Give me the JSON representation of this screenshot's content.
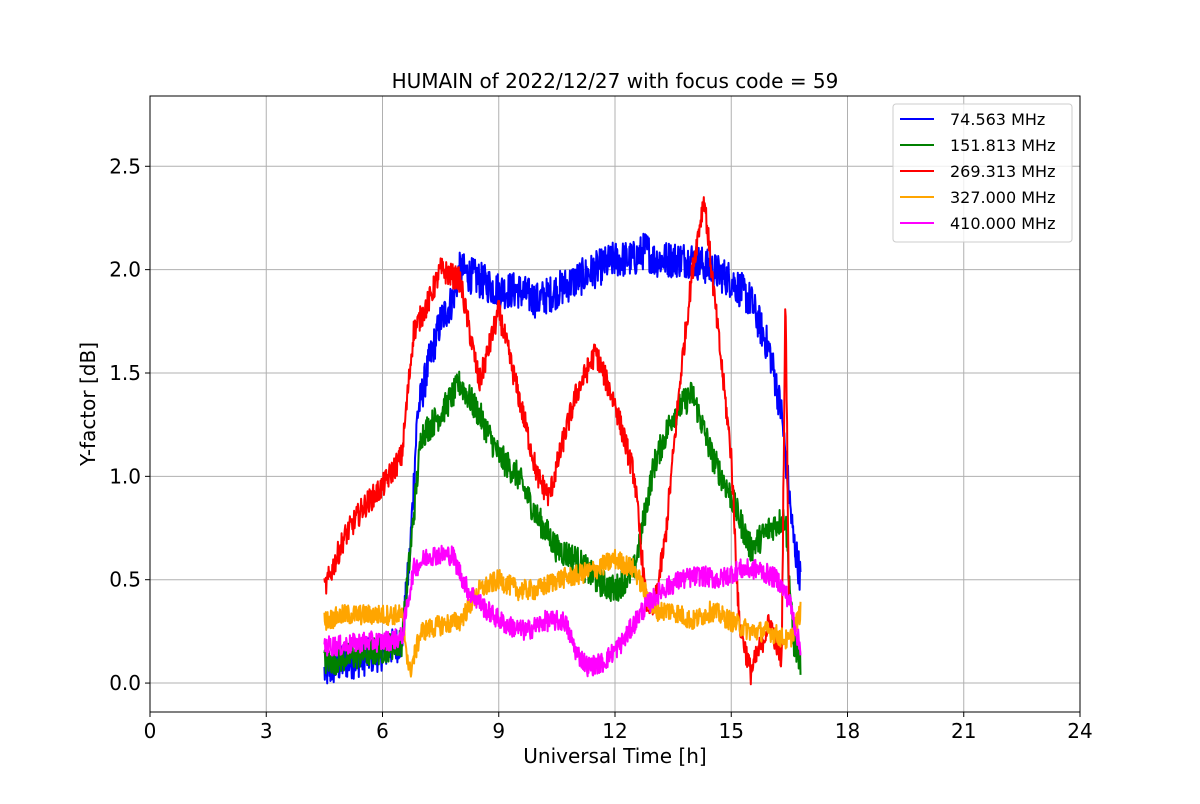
{
  "chart_data": {
    "type": "line",
    "title": "HUMAIN of 2022/12/27 with focus code = 59",
    "xlabel": "Universal Time [h]",
    "ylabel": "Y-factor [dB]",
    "xlim": [
      0,
      24
    ],
    "ylim": [
      -0.14,
      2.84
    ],
    "xticks": [
      0,
      3,
      6,
      9,
      12,
      15,
      18,
      21,
      24
    ],
    "yticks": [
      0.0,
      0.5,
      1.0,
      1.5,
      2.0,
      2.5
    ],
    "xtick_labels": [
      "0",
      "3",
      "6",
      "9",
      "12",
      "15",
      "18",
      "21",
      "24"
    ],
    "ytick_labels": [
      "0.0",
      "0.5",
      "1.0",
      "1.5",
      "2.0",
      "2.5"
    ],
    "grid": true,
    "legend_position": "top-right",
    "series": [
      {
        "name": " 74.563 MHz",
        "color": "#0000ff",
        "noise": 0.09,
        "points": [
          [
            4.5,
            0.05
          ],
          [
            5.0,
            0.1
          ],
          [
            5.5,
            0.12
          ],
          [
            6.0,
            0.15
          ],
          [
            6.5,
            0.2
          ],
          [
            6.7,
            0.6
          ],
          [
            6.9,
            1.3
          ],
          [
            7.2,
            1.55
          ],
          [
            7.5,
            1.75
          ],
          [
            7.8,
            1.85
          ],
          [
            8.0,
            2.0
          ],
          [
            8.5,
            1.95
          ],
          [
            9.0,
            1.9
          ],
          [
            9.5,
            1.9
          ],
          [
            10.0,
            1.85
          ],
          [
            10.5,
            1.9
          ],
          [
            11.0,
            1.95
          ],
          [
            11.5,
            2.0
          ],
          [
            12.0,
            2.05
          ],
          [
            12.5,
            2.05
          ],
          [
            12.8,
            2.1
          ],
          [
            13.0,
            2.05
          ],
          [
            13.5,
            2.05
          ],
          [
            14.0,
            2.05
          ],
          [
            14.5,
            2.0
          ],
          [
            15.0,
            1.95
          ],
          [
            15.5,
            1.85
          ],
          [
            16.0,
            1.6
          ],
          [
            16.3,
            1.3
          ],
          [
            16.6,
            0.7
          ],
          [
            16.8,
            0.5
          ]
        ]
      },
      {
        "name": "151.813 MHz",
        "color": "#008000",
        "noise": 0.07,
        "points": [
          [
            4.5,
            0.1
          ],
          [
            5.0,
            0.12
          ],
          [
            5.5,
            0.14
          ],
          [
            6.0,
            0.16
          ],
          [
            6.5,
            0.2
          ],
          [
            6.7,
            0.6
          ],
          [
            7.0,
            1.2
          ],
          [
            7.5,
            1.3
          ],
          [
            8.0,
            1.45
          ],
          [
            8.5,
            1.3
          ],
          [
            9.0,
            1.1
          ],
          [
            9.5,
            1.0
          ],
          [
            10.0,
            0.8
          ],
          [
            10.5,
            0.65
          ],
          [
            11.0,
            0.6
          ],
          [
            11.5,
            0.5
          ],
          [
            12.0,
            0.45
          ],
          [
            12.5,
            0.55
          ],
          [
            13.0,
            1.05
          ],
          [
            13.5,
            1.3
          ],
          [
            14.0,
            1.4
          ],
          [
            14.5,
            1.1
          ],
          [
            15.0,
            0.9
          ],
          [
            15.5,
            0.65
          ],
          [
            16.0,
            0.75
          ],
          [
            16.4,
            0.8
          ],
          [
            16.6,
            0.2
          ],
          [
            16.8,
            0.1
          ]
        ]
      },
      {
        "name": "269.313 MHz",
        "color": "#ff0000",
        "noise": 0.06,
        "points": [
          [
            4.5,
            0.45
          ],
          [
            5.0,
            0.7
          ],
          [
            5.5,
            0.85
          ],
          [
            6.0,
            0.95
          ],
          [
            6.5,
            1.1
          ],
          [
            6.8,
            1.7
          ],
          [
            7.2,
            1.85
          ],
          [
            7.5,
            2.0
          ],
          [
            8.0,
            1.95
          ],
          [
            8.5,
            1.45
          ],
          [
            9.0,
            1.8
          ],
          [
            9.5,
            1.4
          ],
          [
            10.0,
            1.0
          ],
          [
            10.3,
            0.9
          ],
          [
            10.7,
            1.2
          ],
          [
            11.0,
            1.4
          ],
          [
            11.5,
            1.6
          ],
          [
            12.0,
            1.35
          ],
          [
            12.5,
            1.0
          ],
          [
            12.8,
            0.4
          ],
          [
            13.0,
            0.35
          ],
          [
            13.3,
            0.7
          ],
          [
            13.7,
            1.5
          ],
          [
            14.0,
            2.0
          ],
          [
            14.3,
            2.35
          ],
          [
            14.6,
            1.8
          ],
          [
            15.0,
            1.1
          ],
          [
            15.2,
            0.3
          ],
          [
            15.5,
            0.05
          ],
          [
            16.0,
            0.3
          ],
          [
            16.3,
            0.1
          ],
          [
            16.4,
            1.9
          ],
          [
            16.5,
            0.2
          ]
        ]
      },
      {
        "name": "327.000 MHz",
        "color": "#ffa500",
        "noise": 0.05,
        "points": [
          [
            4.5,
            0.3
          ],
          [
            5.0,
            0.33
          ],
          [
            5.5,
            0.33
          ],
          [
            6.0,
            0.33
          ],
          [
            6.5,
            0.33
          ],
          [
            6.7,
            0.05
          ],
          [
            7.0,
            0.25
          ],
          [
            7.5,
            0.28
          ],
          [
            8.0,
            0.3
          ],
          [
            8.5,
            0.45
          ],
          [
            9.0,
            0.5
          ],
          [
            9.5,
            0.45
          ],
          [
            10.0,
            0.45
          ],
          [
            10.5,
            0.5
          ],
          [
            11.0,
            0.52
          ],
          [
            11.5,
            0.55
          ],
          [
            12.0,
            0.6
          ],
          [
            12.5,
            0.55
          ],
          [
            13.0,
            0.35
          ],
          [
            13.5,
            0.35
          ],
          [
            14.0,
            0.3
          ],
          [
            14.5,
            0.35
          ],
          [
            15.0,
            0.3
          ],
          [
            15.5,
            0.25
          ],
          [
            16.0,
            0.25
          ],
          [
            16.5,
            0.2
          ],
          [
            16.8,
            0.35
          ]
        ]
      },
      {
        "name": "410.000 MHz",
        "color": "#ff00ff",
        "noise": 0.05,
        "points": [
          [
            4.5,
            0.18
          ],
          [
            5.0,
            0.18
          ],
          [
            5.5,
            0.2
          ],
          [
            6.0,
            0.2
          ],
          [
            6.5,
            0.22
          ],
          [
            6.8,
            0.55
          ],
          [
            7.2,
            0.62
          ],
          [
            7.8,
            0.62
          ],
          [
            8.2,
            0.45
          ],
          [
            8.7,
            0.35
          ],
          [
            9.2,
            0.28
          ],
          [
            9.7,
            0.25
          ],
          [
            10.2,
            0.3
          ],
          [
            10.7,
            0.3
          ],
          [
            11.0,
            0.15
          ],
          [
            11.3,
            0.08
          ],
          [
            11.7,
            0.1
          ],
          [
            12.2,
            0.2
          ],
          [
            12.7,
            0.35
          ],
          [
            13.2,
            0.45
          ],
          [
            13.7,
            0.5
          ],
          [
            14.2,
            0.52
          ],
          [
            14.7,
            0.5
          ],
          [
            15.2,
            0.55
          ],
          [
            15.7,
            0.55
          ],
          [
            16.2,
            0.5
          ],
          [
            16.5,
            0.4
          ],
          [
            16.8,
            0.15
          ]
        ]
      }
    ]
  }
}
